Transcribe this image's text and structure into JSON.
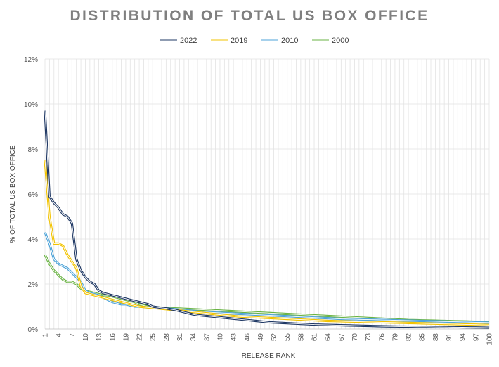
{
  "chart_data": {
    "type": "line",
    "title": "DISTRIBUTION OF TOTAL US BOX OFFICE",
    "xlabel": "RELEASE RANK",
    "ylabel": "% OF TOTAL US BOX OFFICE",
    "xlim": [
      1,
      100
    ],
    "ylim": [
      0,
      12
    ],
    "y_ticks": [
      "0%",
      "2%",
      "4%",
      "6%",
      "8%",
      "10%",
      "12%"
    ],
    "x_ticks": [
      1,
      4,
      7,
      10,
      13,
      16,
      19,
      22,
      25,
      28,
      31,
      34,
      37,
      40,
      43,
      46,
      49,
      52,
      55,
      58,
      61,
      64,
      67,
      70,
      73,
      76,
      79,
      82,
      85,
      88,
      91,
      94,
      97,
      100
    ],
    "grid": "vertical and horizontal",
    "legend_position": "top",
    "series": [
      {
        "name": "2022",
        "color": "#1f3864",
        "values": [
          9.7,
          5.9,
          5.6,
          5.4,
          5.1,
          5.0,
          4.7,
          3.1,
          2.6,
          2.3,
          2.1,
          2.0,
          1.7,
          1.6,
          1.55,
          1.5,
          1.45,
          1.4,
          1.35,
          1.3,
          1.25,
          1.2,
          1.15,
          1.1,
          1.0,
          0.97,
          0.94,
          0.92,
          0.88,
          0.85,
          0.8,
          0.75,
          0.7,
          0.65,
          0.62,
          0.6,
          0.58,
          0.56,
          0.54,
          0.52,
          0.5,
          0.48,
          0.46,
          0.44,
          0.42,
          0.4,
          0.38,
          0.36,
          0.34,
          0.32,
          0.3,
          0.29,
          0.28,
          0.27,
          0.26,
          0.25,
          0.24,
          0.23,
          0.22,
          0.21,
          0.2,
          0.195,
          0.19,
          0.185,
          0.18,
          0.175,
          0.17,
          0.165,
          0.16,
          0.155,
          0.15,
          0.145,
          0.14,
          0.135,
          0.13,
          0.125,
          0.12,
          0.118,
          0.115,
          0.112,
          0.11,
          0.108,
          0.105,
          0.102,
          0.1,
          0.098,
          0.095,
          0.092,
          0.09,
          0.088,
          0.085,
          0.082,
          0.08,
          0.078,
          0.075,
          0.072,
          0.07,
          0.068,
          0.065,
          0.06
        ]
      },
      {
        "name": "2019",
        "color": "#f2c300",
        "values": [
          7.5,
          5.0,
          3.8,
          3.8,
          3.7,
          3.3,
          3.0,
          2.7,
          1.9,
          1.6,
          1.55,
          1.5,
          1.45,
          1.4,
          1.35,
          1.3,
          1.25,
          1.2,
          1.15,
          1.1,
          1.05,
          1.0,
          0.98,
          0.96,
          0.94,
          0.92,
          0.9,
          0.88,
          0.86,
          0.84,
          0.82,
          0.8,
          0.78,
          0.76,
          0.74,
          0.72,
          0.7,
          0.68,
          0.66,
          0.64,
          0.62,
          0.6,
          0.58,
          0.56,
          0.55,
          0.54,
          0.53,
          0.52,
          0.51,
          0.5,
          0.49,
          0.48,
          0.47,
          0.46,
          0.45,
          0.44,
          0.43,
          0.42,
          0.41,
          0.4,
          0.39,
          0.38,
          0.37,
          0.36,
          0.355,
          0.35,
          0.345,
          0.34,
          0.335,
          0.33,
          0.325,
          0.32,
          0.315,
          0.31,
          0.305,
          0.3,
          0.295,
          0.29,
          0.285,
          0.28,
          0.275,
          0.27,
          0.265,
          0.26,
          0.255,
          0.25,
          0.245,
          0.24,
          0.235,
          0.23,
          0.225,
          0.22,
          0.215,
          0.21,
          0.205,
          0.2,
          0.195,
          0.19,
          0.185,
          0.18
        ]
      },
      {
        "name": "2010",
        "color": "#4ea3d8",
        "values": [
          4.3,
          3.8,
          3.1,
          2.9,
          2.8,
          2.7,
          2.5,
          2.3,
          2.1,
          1.7,
          1.6,
          1.55,
          1.5,
          1.4,
          1.3,
          1.2,
          1.15,
          1.1,
          1.1,
          1.05,
          1.0,
          1.0,
          0.98,
          0.96,
          0.95,
          0.94,
          0.93,
          0.92,
          0.9,
          0.88,
          0.86,
          0.84,
          0.82,
          0.8,
          0.78,
          0.76,
          0.75,
          0.74,
          0.73,
          0.72,
          0.71,
          0.7,
          0.69,
          0.68,
          0.67,
          0.66,
          0.65,
          0.64,
          0.63,
          0.62,
          0.61,
          0.6,
          0.59,
          0.58,
          0.57,
          0.56,
          0.55,
          0.54,
          0.53,
          0.52,
          0.51,
          0.5,
          0.49,
          0.48,
          0.47,
          0.46,
          0.45,
          0.445,
          0.44,
          0.435,
          0.43,
          0.425,
          0.42,
          0.415,
          0.41,
          0.405,
          0.4,
          0.395,
          0.39,
          0.385,
          0.38,
          0.375,
          0.37,
          0.365,
          0.36,
          0.355,
          0.35,
          0.345,
          0.34,
          0.335,
          0.33,
          0.325,
          0.32,
          0.315,
          0.31,
          0.305,
          0.3,
          0.295,
          0.29,
          0.285
        ]
      },
      {
        "name": "2000",
        "color": "#6ab344",
        "values": [
          3.3,
          2.9,
          2.6,
          2.4,
          2.2,
          2.1,
          2.1,
          2.0,
          1.8,
          1.7,
          1.65,
          1.6,
          1.55,
          1.5,
          1.5,
          1.45,
          1.4,
          1.35,
          1.3,
          1.25,
          1.2,
          1.1,
          1.05,
          1.0,
          0.98,
          0.96,
          0.95,
          0.94,
          0.93,
          0.92,
          0.91,
          0.9,
          0.89,
          0.88,
          0.87,
          0.86,
          0.85,
          0.84,
          0.83,
          0.82,
          0.81,
          0.8,
          0.79,
          0.78,
          0.77,
          0.76,
          0.75,
          0.74,
          0.73,
          0.72,
          0.71,
          0.7,
          0.69,
          0.68,
          0.67,
          0.66,
          0.65,
          0.64,
          0.63,
          0.62,
          0.61,
          0.6,
          0.59,
          0.58,
          0.57,
          0.56,
          0.55,
          0.54,
          0.53,
          0.52,
          0.51,
          0.5,
          0.49,
          0.48,
          0.47,
          0.46,
          0.45,
          0.44,
          0.43,
          0.42,
          0.41,
          0.4,
          0.395,
          0.39,
          0.385,
          0.38,
          0.375,
          0.37,
          0.365,
          0.36,
          0.355,
          0.35,
          0.345,
          0.34,
          0.335,
          0.33,
          0.325,
          0.32,
          0.315,
          0.31
        ]
      }
    ]
  }
}
